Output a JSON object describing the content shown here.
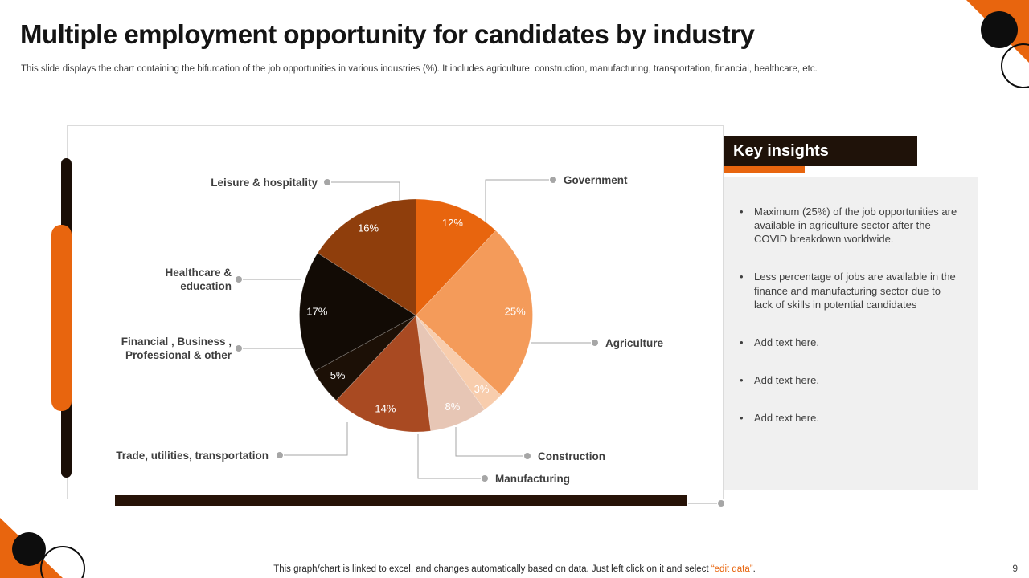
{
  "slide": {
    "title": "Multiple employment opportunity for candidates by industry",
    "subtitle": "This slide displays the chart containing the bifurcation of the job opportunities in various industries (%). It includes agriculture, construction, manufacturing, transportation, financial, healthcare, etc.",
    "page_number": "9",
    "footer": {
      "prefix": "This graph/chart is linked to excel,  and changes automatically based on data. Just left click on it and select ",
      "highlight": "“edit data”",
      "suffix": "."
    }
  },
  "key_insights": {
    "title": "Key insights",
    "bullets": [
      "Maximum (25%) of the job opportunities are available in agriculture sector after the COVID breakdown worldwide.",
      "Less percentage of jobs are available in the finance and manufacturing sector due to lack of skills in potential candidates",
      "Add text here.",
      "Add text here.",
      "Add text here."
    ]
  },
  "chart_data": {
    "type": "pie",
    "title": "Multiple employment opportunity for candidates by industry",
    "units": "percent of job opportunities",
    "start_angle_deg": 0,
    "direction": "clockwise",
    "value_suffix": "%",
    "segments": [
      {
        "label": "Government",
        "value": 12,
        "color": "#E8650E"
      },
      {
        "label": "Agriculture",
        "value": 25,
        "color": "#F49B5A"
      },
      {
        "label": "Construction",
        "value": 3,
        "color": "#F8CDAD"
      },
      {
        "label": "Manufacturing",
        "value": 8,
        "color": "#E7C6B5"
      },
      {
        "label": "Trade, utilities, transportation",
        "value": 14,
        "color": "#A94A22"
      },
      {
        "label": "Financial , Business , Professional & other",
        "value": 5,
        "color": "#1C1006"
      },
      {
        "label": "Healthcare & education",
        "value": 17,
        "color": "#120B05"
      },
      {
        "label": "Leisure & hospitality",
        "value": 16,
        "color": "#8F3E0C"
      }
    ]
  },
  "colors": {
    "accent_orange": "#E8650E",
    "dark_header": "#1F1209",
    "panel_gray": "#F0F0F0",
    "leader_gray": "#A6A6A6"
  }
}
